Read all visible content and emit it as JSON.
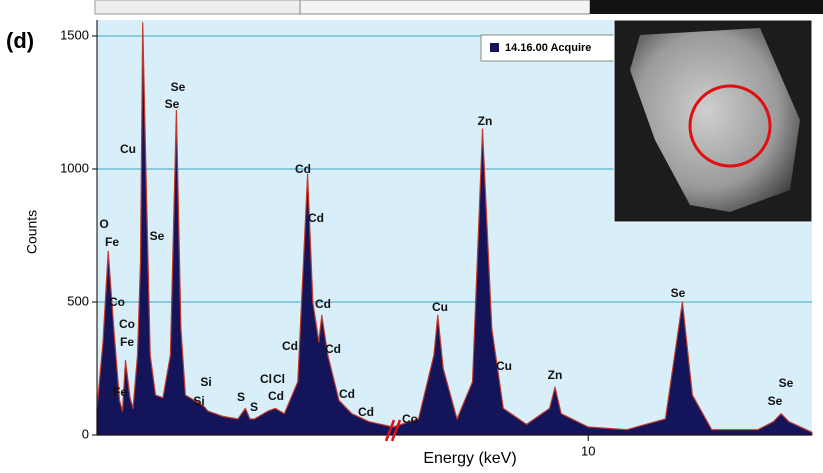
{
  "chart_data": {
    "type": "area",
    "panel_label": "(d)",
    "x_label": "Energy (keV)",
    "y_label": "Counts",
    "xlim": [
      0.32,
      12.9
    ],
    "xbreak": [
      4.27,
      7.47
    ],
    "xticks": [
      10
    ],
    "ylim": [
      0,
      1560
    ],
    "yticks": [
      0,
      500,
      1000,
      1500
    ],
    "grid": true,
    "legend": "upper right",
    "series": [
      {
        "name": "14.16.00 Acquire",
        "color": "#14145a",
        "x": [
          0.32,
          0.4,
          0.47,
          0.55,
          0.62,
          0.66,
          0.7,
          0.76,
          0.8,
          0.86,
          0.9,
          0.93,
          0.98,
          1.03,
          1.1,
          1.2,
          1.3,
          1.38,
          1.44,
          1.5,
          1.74,
          1.8,
          2.0,
          2.2,
          2.3,
          2.36,
          2.42,
          2.6,
          2.7,
          2.82,
          3.0,
          3.13,
          3.2,
          3.28,
          3.32,
          3.4,
          3.55,
          3.72,
          3.95,
          4.27,
          7.47,
          7.8,
          8.0,
          8.05,
          8.12,
          8.3,
          8.5,
          8.63,
          8.75,
          8.9,
          9.2,
          9.5,
          9.57,
          9.65,
          10.0,
          10.5,
          11.0,
          11.22,
          11.35,
          11.6,
          12.2,
          12.4,
          12.5,
          12.6,
          12.9
        ],
        "values": [
          100,
          350,
          690,
          380,
          130,
          90,
          280,
          140,
          100,
          300,
          650,
          1550,
          900,
          300,
          150,
          140,
          300,
          1220,
          400,
          150,
          110,
          90,
          70,
          60,
          100,
          60,
          60,
          90,
          100,
          80,
          200,
          980,
          500,
          350,
          450,
          300,
          130,
          80,
          50,
          30,
          30,
          60,
          300,
          450,
          250,
          60,
          200,
          1150,
          400,
          100,
          40,
          100,
          180,
          80,
          30,
          20,
          60,
          500,
          150,
          20,
          20,
          50,
          80,
          50,
          10
        ]
      }
    ],
    "peak_labels": [
      "O",
      "Fe",
      "Co",
      "Co",
      "Fe",
      "Fe",
      "Cu",
      "Se",
      "Se",
      "Se",
      "Si",
      "Si",
      "S",
      "S",
      "Cl",
      "Cl",
      "Cd",
      "Cd",
      "Cd",
      "Cd",
      "Cd",
      "Cd",
      "Cd",
      "Cd",
      "Co",
      "Cu",
      "Zn",
      "Cu",
      "Zn",
      "Se",
      "Se",
      "Se"
    ]
  }
}
